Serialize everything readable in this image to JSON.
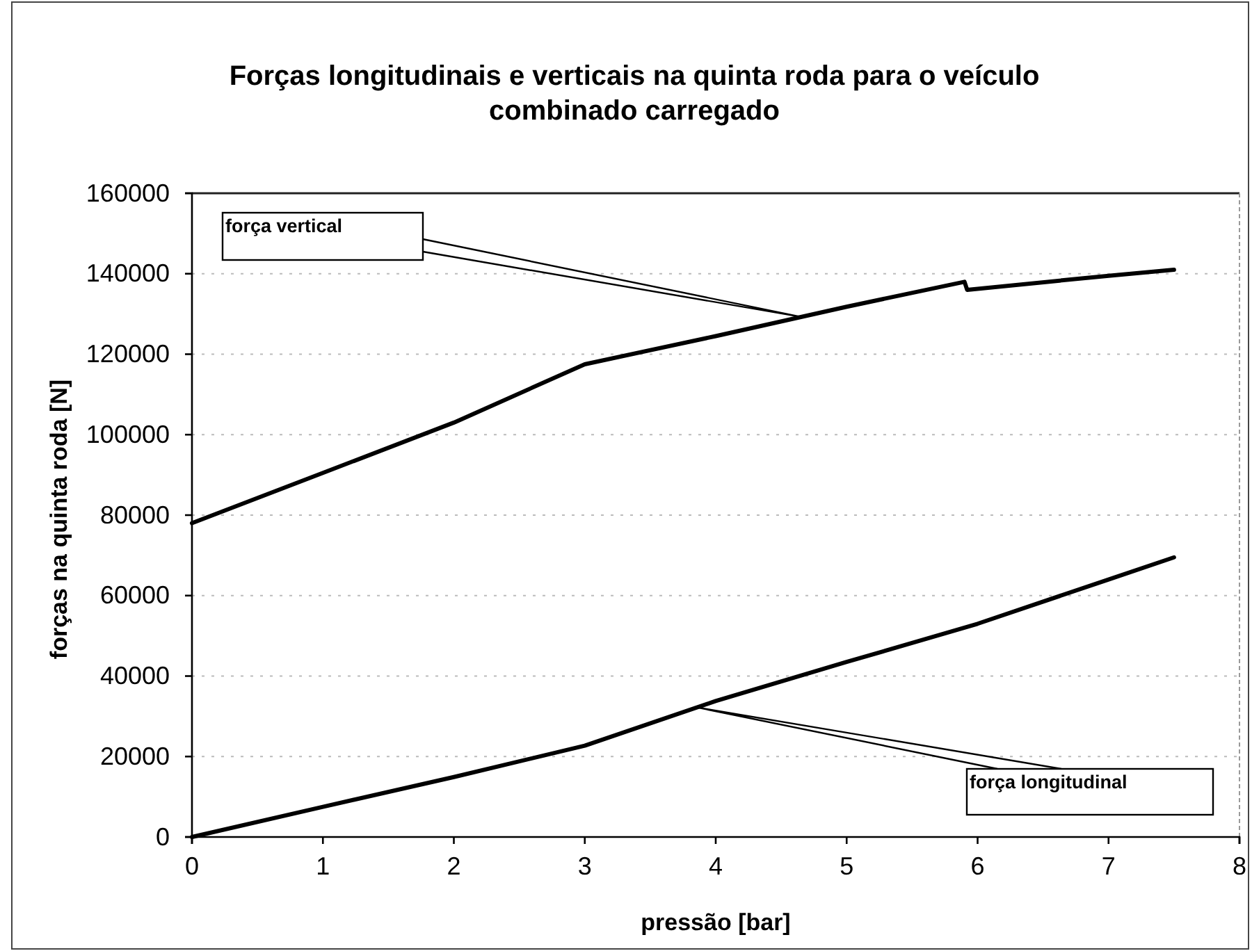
{
  "chart_data": {
    "type": "line",
    "title": "Forças longitudinais e verticais na quinta roda para o veículo combinado carregado",
    "xlabel": "pressão [bar]",
    "ylabel": "forças na quinta roda [N]",
    "xlim": [
      0,
      8
    ],
    "xticks": [
      0,
      1,
      2,
      3,
      4,
      5,
      6,
      7,
      8
    ],
    "ylim": [
      0,
      160000
    ],
    "yticks": [
      0,
      20000,
      40000,
      60000,
      80000,
      100000,
      120000,
      140000,
      160000
    ],
    "grid": "y",
    "line_style": "solid",
    "series": [
      {
        "name": "força vertical",
        "color": "#000000",
        "x": [
          0,
          1,
          2,
          3,
          4,
          5,
          5.9,
          5.92,
          7,
          7.5
        ],
        "values": [
          78000,
          90500,
          103000,
          117500,
          124500,
          131800,
          138000,
          136000,
          139500,
          141000
        ]
      },
      {
        "name": "força longitudinal",
        "color": "#000000",
        "x": [
          0,
          1,
          2,
          3,
          4,
          5,
          6,
          7,
          7.5
        ],
        "values": [
          0,
          7500,
          14900,
          22700,
          33800,
          43500,
          53000,
          64000,
          69500
        ]
      }
    ]
  }
}
